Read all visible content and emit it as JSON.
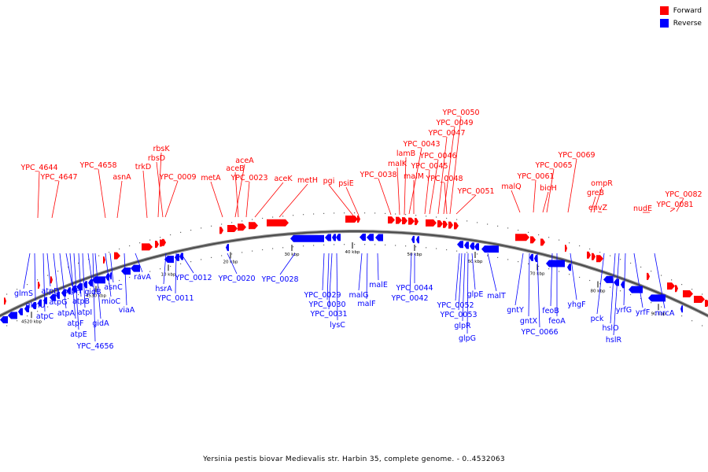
{
  "legend": {
    "forward_label": "Forward",
    "reverse_label": "Reverse",
    "forward_color": "#ff0000",
    "reverse_color": "#0000ff"
  },
  "caption": "Yersinia pestis biovar Medievalis str. Harbin 35, complete genome. - 0..4532063",
  "ticks": [
    {
      "label": "4520 kbp"
    },
    {
      "label": "4530 kbp"
    },
    {
      "label": "10 kbp"
    },
    {
      "label": "20 kbp"
    },
    {
      "label": "30 kbp"
    },
    {
      "label": "40 kbp"
    },
    {
      "label": "50 kbp"
    },
    {
      "label": "60 kbp"
    },
    {
      "label": "70 kbp"
    },
    {
      "label": "80 kbp"
    },
    {
      "label": "90 kbp"
    }
  ],
  "forward_labels": [
    {
      "text": "YPC_4644"
    },
    {
      "text": "YPC_4647"
    },
    {
      "text": "YPC_4658"
    },
    {
      "text": "asnA"
    },
    {
      "text": "trkD"
    },
    {
      "text": "rbsK"
    },
    {
      "text": "rbsD"
    },
    {
      "text": "YPC_0009"
    },
    {
      "text": "metA"
    },
    {
      "text": "aceA"
    },
    {
      "text": "aceB"
    },
    {
      "text": "YPC_0023"
    },
    {
      "text": "aceK"
    },
    {
      "text": "metH"
    },
    {
      "text": "pgi"
    },
    {
      "text": "psiE"
    },
    {
      "text": "YPC_0038"
    },
    {
      "text": "malK"
    },
    {
      "text": "lamB"
    },
    {
      "text": "YPC_0043"
    },
    {
      "text": "malM"
    },
    {
      "text": "YPC_0045"
    },
    {
      "text": "YPC_0046"
    },
    {
      "text": "YPC_0047"
    },
    {
      "text": "YPC_0049"
    },
    {
      "text": "YPC_0050"
    },
    {
      "text": "YPC_0048"
    },
    {
      "text": "YPC_0051"
    },
    {
      "text": "malQ"
    },
    {
      "text": "YPC_0061"
    },
    {
      "text": "bioH"
    },
    {
      "text": "YPC_0065"
    },
    {
      "text": "YPC_0069"
    },
    {
      "text": "greB"
    },
    {
      "text": "ompR"
    },
    {
      "text": "envZ"
    },
    {
      "text": "nudE"
    },
    {
      "text": "YPC_0081"
    },
    {
      "text": "YPC_0082"
    }
  ],
  "reverse_labels": [
    {
      "text": "glmS"
    },
    {
      "text": "glmU"
    },
    {
      "text": "atpC"
    },
    {
      "text": "atpD"
    },
    {
      "text": "atpG"
    },
    {
      "text": "atpA"
    },
    {
      "text": "atpH"
    },
    {
      "text": "atpF"
    },
    {
      "text": "atpE"
    },
    {
      "text": "atpB"
    },
    {
      "text": "atpI"
    },
    {
      "text": "gidB"
    },
    {
      "text": "gidA"
    },
    {
      "text": "YPC_4656"
    },
    {
      "text": "mioC"
    },
    {
      "text": "asnC"
    },
    {
      "text": "viaA"
    },
    {
      "text": "ravA"
    },
    {
      "text": "hsrA"
    },
    {
      "text": "YPC_0011"
    },
    {
      "text": "YPC_0012"
    },
    {
      "text": "YPC_0020"
    },
    {
      "text": "YPC_0028"
    },
    {
      "text": "YPC_0029"
    },
    {
      "text": "YPC_0030"
    },
    {
      "text": "YPC_0031"
    },
    {
      "text": "lysC"
    },
    {
      "text": "malG"
    },
    {
      "text": "malF"
    },
    {
      "text": "malE"
    },
    {
      "text": "YPC_0044"
    },
    {
      "text": "YPC_0042"
    },
    {
      "text": "YPC_0052"
    },
    {
      "text": "YPC_0053"
    },
    {
      "text": "glpR"
    },
    {
      "text": "glpG"
    },
    {
      "text": "glpE"
    },
    {
      "text": "malT"
    },
    {
      "text": "gntY"
    },
    {
      "text": "gntX"
    },
    {
      "text": "YPC_0066"
    },
    {
      "text": "feoB"
    },
    {
      "text": "feoA"
    },
    {
      "text": "yhgF"
    },
    {
      "text": "pck"
    },
    {
      "text": "hslO"
    },
    {
      "text": "hslR"
    },
    {
      "text": "yrfG"
    },
    {
      "text": "yrfF"
    },
    {
      "text": "mrcA"
    }
  ]
}
